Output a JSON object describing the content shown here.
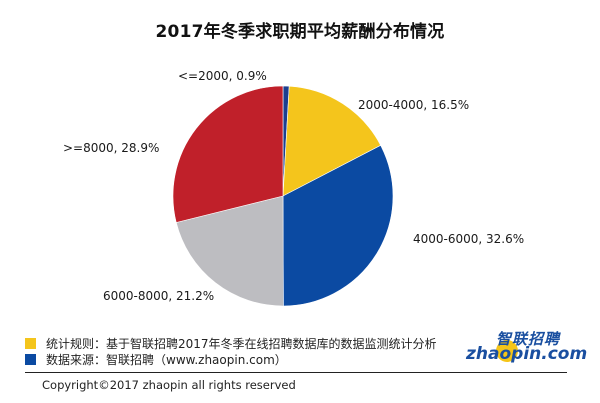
{
  "title": "2017年冬季求职期平均薪酬分布情况",
  "chart_data": {
    "type": "pie",
    "title": "2017年冬季求职期平均薪酬分布情况",
    "start_angle": "12 o'clock, clockwise",
    "categories": [
      "<=2000",
      "2000-4000",
      "4000-6000",
      "6000-8000",
      ">=8000"
    ],
    "values": [
      0.9,
      16.5,
      32.6,
      21.2,
      28.9
    ],
    "unit": "%",
    "colors": [
      "#1c3f8f",
      "#f4c51c",
      "#0b4aa2",
      "#bdbdc1",
      "#c0202a"
    ],
    "labels": [
      "<=2000, 0.9%",
      "2000-4000, 16.5%",
      "4000-6000, 32.6%",
      "6000-8000, 21.2%",
      ">=8000, 28.9%"
    ]
  },
  "slice_labels": {
    "s0": "<=2000, 0.9%",
    "s1": "2000-4000, 16.5%",
    "s2": "4000-6000, 32.6%",
    "s3": "6000-8000, 21.2%",
    "s4": ">=8000, 28.9%"
  },
  "legend": {
    "rule": {
      "text": "统计规则：基于智联招聘2017年冬季在线招聘数据库的数据监测统计分析",
      "color": "#f4c51c"
    },
    "source": {
      "text": "数据来源：智联招聘（www.zhaopin.com）",
      "color": "#0b4aa2"
    }
  },
  "logo": {
    "cn": "智联招聘",
    "en": "zhaopin.com"
  },
  "copyright": "Copyright©2017 zhaopin all rights reserved"
}
